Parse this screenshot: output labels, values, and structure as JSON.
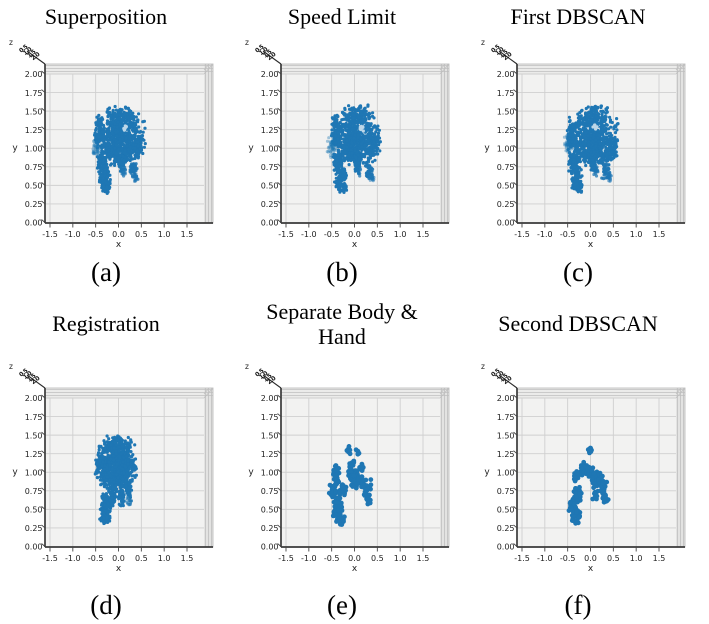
{
  "figure": {
    "background": "#ffffff",
    "panel_bg": "#f2f2f1",
    "wall_top_bg": "#ebebea",
    "wall_right_bg": "#e3e3e2",
    "grid_color": "#cfcfcf",
    "edge_color": "#bfbfbf",
    "spine_color": "#3a3a3a",
    "tick_color": "#222222",
    "point_color": "#1f77b4",
    "z_scribble_glyphs": [
      "0.5",
      "1.0",
      "1.5",
      "2.0"
    ]
  },
  "chart_data": [
    {
      "type": "scatter",
      "projection": "3d-front-view",
      "title": "Superposition",
      "caption": "(a)",
      "xlabel": "x",
      "ylabel": "y",
      "zlabel": "z",
      "xlim": [
        -1.5,
        1.5
      ],
      "ylim": [
        0,
        2
      ],
      "xticks": [
        "-1.5",
        "-1.0",
        "-0.5",
        "0.0",
        "0.5",
        "1.0",
        "1.5"
      ],
      "yticks": [
        "2.00",
        "1.75",
        "1.50",
        "1.25",
        "1.00",
        "0.75",
        "0.50",
        "0.25",
        "0.00"
      ],
      "grid": true,
      "legend": false,
      "dot_r": 1.6,
      "seed": 101,
      "clusters": [
        [
          0.05,
          1.43,
          0.3,
          0.13,
          140,
          1
        ],
        [
          0.05,
          1.14,
          0.45,
          0.28,
          520,
          1
        ],
        [
          0.0,
          0.92,
          0.35,
          0.13,
          170,
          1
        ],
        [
          0.44,
          1.04,
          0.1,
          0.12,
          50,
          1
        ],
        [
          -0.42,
          1.36,
          0.08,
          0.07,
          30,
          1
        ],
        [
          -0.4,
          1.18,
          0.11,
          0.13,
          65,
          1
        ],
        [
          -0.36,
          0.8,
          0.1,
          0.13,
          70,
          1
        ],
        [
          -0.3,
          0.6,
          0.11,
          0.14,
          85,
          1
        ],
        [
          -0.27,
          0.47,
          0.09,
          0.07,
          40,
          1
        ],
        [
          0.06,
          0.8,
          0.07,
          0.11,
          40,
          1
        ],
        [
          0.1,
          0.69,
          0.05,
          0.06,
          16,
          0.75
        ],
        [
          0.32,
          0.7,
          0.08,
          0.11,
          45,
          0.9
        ],
        [
          0.38,
          0.6,
          0.05,
          0.05,
          14,
          0.55
        ],
        [
          -0.49,
          1.02,
          0.1,
          0.12,
          45,
          0.4
        ],
        [
          0.15,
          1.27,
          0.04,
          0.035,
          8,
          1,
          "#bdd7e8"
        ]
      ]
    },
    {
      "type": "scatter",
      "projection": "3d-front-view",
      "title": "Speed Limit",
      "caption": "(b)",
      "xlabel": "x",
      "ylabel": "y",
      "zlabel": "z",
      "xlim": [
        -1.5,
        1.5
      ],
      "ylim": [
        0,
        2
      ],
      "xticks": [
        "-1.5",
        "-1.0",
        "-0.5",
        "0.0",
        "0.5",
        "1.0",
        "1.5"
      ],
      "yticks": [
        "2.00",
        "1.75",
        "1.50",
        "1.25",
        "1.00",
        "0.75",
        "0.50",
        "0.25",
        "0.00"
      ],
      "grid": true,
      "legend": false,
      "dot_r": 1.6,
      "seed": 202,
      "clusters": [
        [
          0.05,
          1.43,
          0.3,
          0.13,
          140,
          1
        ],
        [
          0.05,
          1.14,
          0.45,
          0.28,
          520,
          1
        ],
        [
          0.0,
          0.92,
          0.35,
          0.13,
          170,
          1
        ],
        [
          0.44,
          1.04,
          0.1,
          0.12,
          50,
          1
        ],
        [
          -0.42,
          1.36,
          0.08,
          0.07,
          30,
          1
        ],
        [
          -0.4,
          1.18,
          0.11,
          0.13,
          65,
          1
        ],
        [
          -0.36,
          0.8,
          0.1,
          0.13,
          70,
          1
        ],
        [
          -0.3,
          0.6,
          0.11,
          0.14,
          85,
          1
        ],
        [
          -0.27,
          0.47,
          0.09,
          0.07,
          40,
          1
        ],
        [
          0.06,
          0.8,
          0.07,
          0.11,
          40,
          1
        ],
        [
          0.1,
          0.69,
          0.05,
          0.06,
          16,
          0.75
        ],
        [
          0.32,
          0.7,
          0.08,
          0.11,
          45,
          0.9
        ],
        [
          0.38,
          0.6,
          0.05,
          0.05,
          14,
          0.55
        ],
        [
          -0.49,
          1.02,
          0.1,
          0.12,
          45,
          0.4
        ],
        [
          0.15,
          1.27,
          0.04,
          0.035,
          8,
          1,
          "#bdd7e8"
        ]
      ]
    },
    {
      "type": "scatter",
      "projection": "3d-front-view",
      "title": "First DBSCAN",
      "caption": "(c)",
      "xlabel": "x",
      "ylabel": "y",
      "zlabel": "z",
      "xlim": [
        -1.5,
        1.5
      ],
      "ylim": [
        0,
        2
      ],
      "xticks": [
        "-1.5",
        "-1.0",
        "-0.5",
        "0.0",
        "0.5",
        "1.0",
        "1.5"
      ],
      "yticks": [
        "2.00",
        "1.75",
        "1.50",
        "1.25",
        "1.00",
        "0.75",
        "0.50",
        "0.25",
        "0.00"
      ],
      "grid": true,
      "legend": false,
      "dot_r": 1.6,
      "seed": 303,
      "clusters": [
        [
          0.05,
          1.42,
          0.29,
          0.13,
          140,
          1
        ],
        [
          0.06,
          1.13,
          0.45,
          0.28,
          520,
          1
        ],
        [
          0.0,
          0.92,
          0.35,
          0.13,
          170,
          1
        ],
        [
          0.48,
          1.0,
          0.1,
          0.14,
          60,
          1
        ],
        [
          -0.38,
          1.3,
          0.07,
          0.06,
          25,
          1
        ],
        [
          -0.42,
          1.16,
          0.1,
          0.13,
          65,
          1
        ],
        [
          -0.36,
          0.8,
          0.1,
          0.13,
          70,
          1
        ],
        [
          -0.31,
          0.6,
          0.11,
          0.14,
          85,
          1
        ],
        [
          -0.28,
          0.47,
          0.09,
          0.07,
          40,
          1
        ],
        [
          0.06,
          0.8,
          0.07,
          0.11,
          40,
          1
        ],
        [
          0.12,
          0.7,
          0.05,
          0.06,
          16,
          0.75
        ],
        [
          0.34,
          0.7,
          0.08,
          0.11,
          45,
          0.9
        ],
        [
          0.4,
          0.61,
          0.05,
          0.05,
          14,
          0.55
        ],
        [
          -0.48,
          1.05,
          0.09,
          0.11,
          40,
          0.4
        ],
        [
          0.1,
          1.28,
          0.04,
          0.035,
          8,
          1,
          "#bdd7e8"
        ]
      ]
    },
    {
      "type": "scatter",
      "projection": "3d-front-view",
      "title": "Registration",
      "caption": "(d)",
      "xlabel": "x",
      "ylabel": "y",
      "zlabel": "z",
      "xlim": [
        -1.5,
        1.5
      ],
      "ylim": [
        0,
        2
      ],
      "xticks": [
        "-1.5",
        "-1.0",
        "-0.5",
        "0.0",
        "0.5",
        "1.0",
        "1.5"
      ],
      "yticks": [
        "2.00",
        "1.75",
        "1.50",
        "1.25",
        "1.00",
        "0.75",
        "0.50",
        "0.25",
        "0.00"
      ],
      "grid": true,
      "legend": false,
      "dot_r": 1.6,
      "seed": 404,
      "clusters": [
        [
          -0.02,
          1.35,
          0.27,
          0.12,
          130,
          1
        ],
        [
          -0.05,
          1.1,
          0.38,
          0.24,
          520,
          1
        ],
        [
          -0.38,
          1.12,
          0.12,
          0.14,
          70,
          1
        ],
        [
          -0.05,
          0.88,
          0.3,
          0.12,
          160,
          1
        ],
        [
          -0.12,
          0.68,
          0.07,
          0.12,
          45,
          1
        ],
        [
          0.06,
          0.66,
          0.06,
          0.12,
          45,
          1
        ],
        [
          -0.28,
          0.58,
          0.12,
          0.14,
          85,
          1
        ],
        [
          -0.3,
          0.4,
          0.1,
          0.09,
          55,
          1
        ],
        [
          0.22,
          0.78,
          0.08,
          0.1,
          35,
          1
        ],
        [
          0.24,
          0.62,
          0.05,
          0.06,
          14,
          0.7
        ]
      ]
    },
    {
      "type": "scatter",
      "projection": "3d-front-view",
      "title": "Separate Body & Hand",
      "caption": "(e)",
      "xlabel": "x",
      "ylabel": "y",
      "zlabel": "z",
      "xlim": [
        -1.5,
        1.5
      ],
      "ylim": [
        0,
        2
      ],
      "xticks": [
        "-1.5",
        "-1.0",
        "-0.5",
        "0.0",
        "0.5",
        "1.0",
        "1.5"
      ],
      "yticks": [
        "2.00",
        "1.75",
        "1.50",
        "1.25",
        "1.00",
        "0.75",
        "0.50",
        "0.25",
        "0.00"
      ],
      "grid": true,
      "legend": false,
      "dot_r": 2.4,
      "seed": 505,
      "clusters": [
        [
          -0.42,
          0.97,
          0.08,
          0.13,
          38,
          1
        ],
        [
          -0.46,
          0.76,
          0.08,
          0.1,
          24,
          1
        ],
        [
          -0.12,
          1.3,
          0.06,
          0.05,
          12,
          1
        ],
        [
          0.07,
          1.27,
          0.04,
          0.04,
          7,
          1
        ],
        [
          -0.07,
          1.12,
          0.05,
          0.05,
          9,
          1
        ],
        [
          0.16,
          1.07,
          0.05,
          0.05,
          9,
          1
        ],
        [
          -0.05,
          0.96,
          0.12,
          0.1,
          34,
          1
        ],
        [
          0.06,
          0.86,
          0.12,
          0.1,
          30,
          1
        ],
        [
          0.27,
          0.78,
          0.09,
          0.11,
          28,
          1
        ],
        [
          0.3,
          0.63,
          0.06,
          0.06,
          12,
          1
        ],
        [
          -0.25,
          0.76,
          0.08,
          0.08,
          20,
          1
        ],
        [
          -0.38,
          0.52,
          0.11,
          0.13,
          42,
          1
        ],
        [
          -0.31,
          0.35,
          0.08,
          0.07,
          18,
          1
        ]
      ]
    },
    {
      "type": "scatter",
      "projection": "3d-front-view",
      "title": "Second DBSCAN",
      "caption": "(f)",
      "xlabel": "x",
      "ylabel": "y",
      "zlabel": "z",
      "xlim": [
        -1.5,
        1.5
      ],
      "ylim": [
        0,
        2
      ],
      "xticks": [
        "-1.5",
        "-1.0",
        "-0.5",
        "0.0",
        "0.5",
        "1.0",
        "1.5"
      ],
      "yticks": [
        "2.00",
        "1.75",
        "1.50",
        "1.25",
        "1.00",
        "0.75",
        "0.50",
        "0.25",
        "0.00"
      ],
      "grid": true,
      "legend": false,
      "dot_r": 2.4,
      "seed": 606,
      "clusters": [
        [
          -0.02,
          1.3,
          0.06,
          0.05,
          12,
          1
        ],
        [
          -0.15,
          1.04,
          0.08,
          0.08,
          22,
          1
        ],
        [
          -0.02,
          1.0,
          0.08,
          0.08,
          20,
          1
        ],
        [
          -0.3,
          0.94,
          0.06,
          0.08,
          14,
          1
        ],
        [
          0.14,
          0.9,
          0.12,
          0.1,
          35,
          1
        ],
        [
          0.28,
          0.8,
          0.08,
          0.09,
          24,
          1
        ],
        [
          0.32,
          0.65,
          0.06,
          0.08,
          16,
          1
        ],
        [
          0.12,
          0.68,
          0.06,
          0.06,
          12,
          1
        ],
        [
          -0.28,
          0.72,
          0.09,
          0.1,
          30,
          1
        ],
        [
          -0.38,
          0.57,
          0.09,
          0.11,
          32,
          1
        ],
        [
          -0.32,
          0.42,
          0.09,
          0.1,
          30,
          1
        ]
      ]
    }
  ]
}
